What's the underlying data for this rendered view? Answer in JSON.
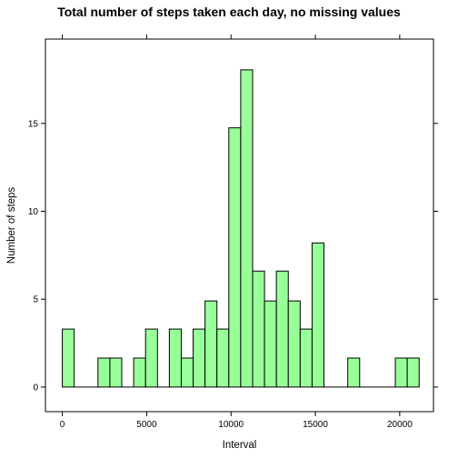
{
  "chart_data": {
    "type": "bar",
    "title": "Total number of steps taken each day, no missing values",
    "xlabel": "Interval",
    "ylabel": "Number of steps",
    "xlim": [
      -1000,
      22000
    ],
    "ylim": [
      -1.4,
      19.8
    ],
    "x_ticks": [
      0,
      5000,
      10000,
      15000,
      20000
    ],
    "x_tick_labels": [
      "0",
      "5000",
      "10000",
      "15000",
      "20000"
    ],
    "y_ticks": [
      0,
      5,
      10,
      15
    ],
    "y_tick_labels": [
      "0",
      "5",
      "10",
      "15"
    ],
    "grid": false,
    "bar_color": "#99ff99",
    "bar_edge_color": "#000000",
    "bin_edges": [
      0,
      705,
      1410,
      2115,
      2820,
      3525,
      4230,
      4935,
      5640,
      6345,
      7050,
      7755,
      8460,
      9165,
      9870,
      10575,
      11280,
      11985,
      12690,
      13395,
      14100,
      14805,
      15510,
      16215,
      16920,
      17625,
      18330,
      19035,
      19740,
      20445,
      21150
    ],
    "values": [
      3.3,
      0,
      0,
      1.65,
      1.65,
      0,
      1.65,
      3.3,
      0,
      3.3,
      1.65,
      3.3,
      4.9,
      3.3,
      14.75,
      18.05,
      6.6,
      4.9,
      6.6,
      4.9,
      3.3,
      8.2,
      0,
      0,
      1.65,
      0,
      0,
      0,
      1.65,
      1.65
    ]
  }
}
